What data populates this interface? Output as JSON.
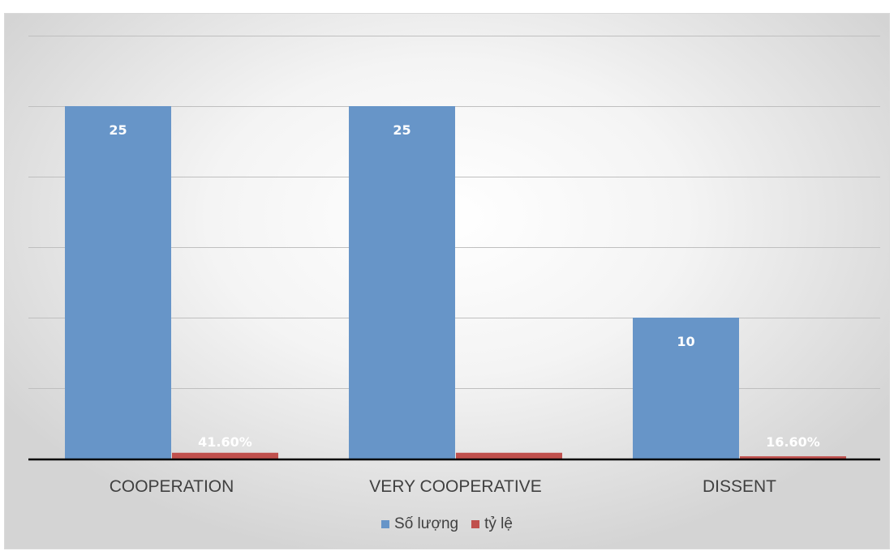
{
  "chart_data": {
    "type": "bar",
    "title": "",
    "xlabel": "",
    "ylabel": "",
    "categories": [
      "COOPERATION",
      "VERY COOPERATIVE",
      "DISSENT"
    ],
    "series": [
      {
        "name": "Số lượng",
        "values": [
          25,
          25,
          10
        ],
        "labels": [
          "25",
          "25",
          "10"
        ],
        "color": "#6795c8"
      },
      {
        "name": "tỷ lệ",
        "values": [
          0.416,
          0.416,
          0.166
        ],
        "labels": [
          "41.60%",
          "",
          "16.60%"
        ],
        "color": "#c0504d"
      }
    ],
    "ylim": [
      0,
      30
    ],
    "gridlines": [
      5,
      10,
      15,
      20,
      25,
      30
    ],
    "grid": true,
    "legend": "bottom",
    "data_label_color": "#ffffff",
    "axis_color": "#000000",
    "grid_color": "#bfbfbf",
    "category_label_color": "#404040"
  }
}
